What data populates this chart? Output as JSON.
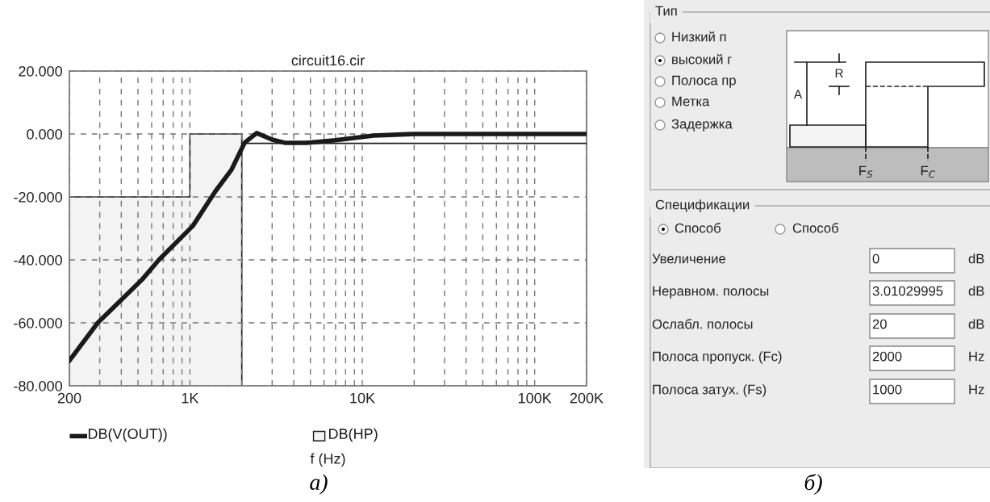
{
  "chart_data": [
    {
      "type": "line",
      "title": "circuit16.cir",
      "xlabel": "f (Hz)",
      "log": "x",
      "grid": true,
      "legend": "bottom",
      "xlim": [
        200,
        200000
      ],
      "xticks": [
        {
          "value": 200,
          "label": "200"
        },
        {
          "value": 300,
          "label": null
        },
        {
          "value": 400,
          "label": null
        },
        {
          "value": 500,
          "label": null
        },
        {
          "value": 600,
          "label": null
        },
        {
          "value": 700,
          "label": null
        },
        {
          "value": 800,
          "label": null
        },
        {
          "value": 900,
          "label": null
        },
        {
          "value": 1000,
          "label": "1K"
        },
        {
          "value": 2000,
          "label": null
        },
        {
          "value": 3000,
          "label": null
        },
        {
          "value": 4000,
          "label": null
        },
        {
          "value": 5000,
          "label": null
        },
        {
          "value": 6000,
          "label": null
        },
        {
          "value": 7000,
          "label": null
        },
        {
          "value": 8000,
          "label": null
        },
        {
          "value": 9000,
          "label": null
        },
        {
          "value": 10000,
          "label": "10K"
        },
        {
          "value": 20000,
          "label": null
        },
        {
          "value": 30000,
          "label": null
        },
        {
          "value": 40000,
          "label": null
        },
        {
          "value": 50000,
          "label": null
        },
        {
          "value": 60000,
          "label": null
        },
        {
          "value": 70000,
          "label": null
        },
        {
          "value": 80000,
          "label": null
        },
        {
          "value": 90000,
          "label": null
        },
        {
          "value": 100000,
          "label": "100K"
        },
        {
          "value": 200000,
          "label": "200K"
        }
      ],
      "ylim": [
        -80,
        20
      ],
      "yticks": [
        {
          "value": -80,
          "label": "-80.000"
        },
        {
          "value": -60,
          "label": "-60.000"
        },
        {
          "value": -40,
          "label": "-40.000"
        },
        {
          "value": -20,
          "label": "-20.000"
        },
        {
          "value": 0,
          "label": "0.000"
        },
        {
          "value": 20,
          "label": "20.000"
        }
      ],
      "annotations": [
        "а)"
      ],
      "series": [
        {
          "name": "DB(HP)",
          "type": "area",
          "color": "#f3f3f3",
          "x": [
            200,
            200,
            1000,
            1000,
            2000,
            2000
          ],
          "values": [
            -80,
            -20,
            -20,
            0,
            0,
            -80
          ]
        },
        {
          "type": "line",
          "color": "#1a1a1a",
          "x": [
            2000,
            200000
          ],
          "values": [
            -3,
            -3
          ]
        },
        {
          "name": "DB(V(OUT))",
          "type": "line",
          "color": "#1a1a1a",
          "x": [
            200,
            292,
            398,
            533,
            661,
            1040,
            1406,
            1745,
            2075,
            2440,
            3000,
            3550,
            4750,
            7000,
            11600,
            20000,
            200000
          ],
          "values": [
            -72,
            -60,
            -52.8,
            -46,
            -40,
            -29.2,
            -18.2,
            -11.3,
            -2.8,
            0.3,
            -1.8,
            -2.8,
            -2.8,
            -2,
            -0.5,
            0,
            0
          ]
        }
      ]
    },
    {
      "type": "other",
      "annotations": [
        "Тип",
        "Низкий п",
        "высокий г",
        "Полоса пр",
        "Метка",
        "Задержка",
        "A",
        "R",
        "F$_{S}$",
        "F$_{C}$",
        "Спецификации",
        "Способ",
        "Способ",
        "Увеличение",
        "0",
        "dB",
        "Неравном. полосы",
        "3.01029995",
        "dB",
        "Ослабл. полосы",
        "20",
        "dB",
        "Полоса пропуск. (Fc)",
        "2000",
        "Hz",
        "Полоса затух. (Fs)",
        "1000",
        "Hz",
        "б)"
      ]
    }
  ]
}
